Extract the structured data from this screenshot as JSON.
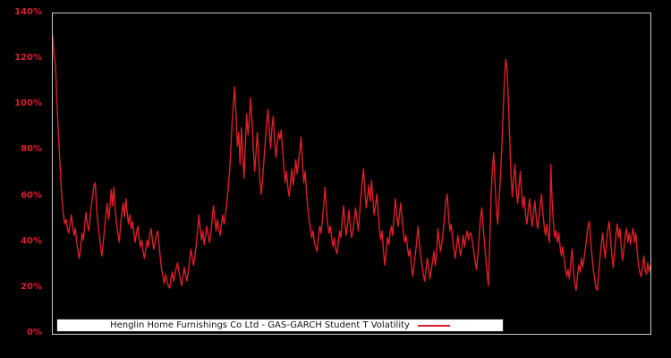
{
  "colors": {
    "background": "#000000",
    "frame": "#cbcbcb",
    "tick_label": "#d8202e",
    "line": "#dc1f28",
    "legend_bg": "#ffffff",
    "legend_text": "#111111"
  },
  "chart_data": {
    "type": "line",
    "title": "",
    "xlabel": "",
    "ylabel": "",
    "unit": "%",
    "grid": false,
    "x_tick_labels": [],
    "y_tick_values": [
      0,
      20,
      40,
      60,
      80,
      100,
      120,
      140
    ],
    "y_tick_labels": [
      "0%",
      "20%",
      "40%",
      "60%",
      "80%",
      "100%",
      "120%",
      "140%"
    ],
    "ylim": [
      0,
      140
    ],
    "legend_position": "bottom-center-inside",
    "legend_label": "Henglin Home Furnishings Co Ltd - GAS-GARCH Student T Volatility",
    "series": [
      {
        "name": "Henglin Home Furnishings Co Ltd - GAS-GARCH Student T Volatility",
        "color": "#dc1f28",
        "values": [
          130,
          121,
          118,
          103,
          90,
          79,
          68,
          58,
          52,
          48,
          50,
          46,
          44,
          48,
          52,
          47,
          43,
          46,
          40,
          36,
          33,
          38,
          44,
          41,
          47,
          53,
          48,
          45,
          50,
          56,
          60,
          65,
          66,
          55,
          48,
          43,
          38,
          34,
          40,
          46,
          52,
          57,
          50,
          55,
          63,
          56,
          64,
          54,
          48,
          44,
          40,
          47,
          53,
          57,
          51,
          59,
          53,
          48,
          52,
          46,
          49,
          44,
          40,
          44,
          47,
          42,
          38,
          41,
          36,
          33,
          37,
          41,
          38,
          43,
          46,
          41,
          37,
          40,
          43,
          45,
          39,
          33,
          28,
          25,
          22,
          26,
          23,
          21,
          20,
          24,
          27,
          23,
          26,
          29,
          31,
          27,
          24,
          21,
          25,
          29,
          26,
          23,
          27,
          32,
          37,
          33,
          30,
          34,
          39,
          45,
          52,
          46,
          41,
          45,
          39,
          43,
          47,
          43,
          40,
          44,
          50,
          56,
          50,
          45,
          50,
          46,
          43,
          48,
          52,
          48,
          52,
          57,
          63,
          70,
          80,
          92,
          101,
          108,
          95,
          82,
          88,
          74,
          90,
          79,
          68,
          83,
          96,
          87,
          94,
          103,
          93,
          81,
          71,
          79,
          88,
          77,
          66,
          61,
          68,
          76,
          84,
          92,
          98,
          89,
          81,
          90,
          95,
          85,
          77,
          83,
          88,
          85,
          89,
          81,
          73,
          66,
          71,
          64,
          60,
          66,
          72,
          65,
          70,
          76,
          70,
          75,
          80,
          86,
          75,
          66,
          71,
          62,
          55,
          50,
          46,
          42,
          45,
          40,
          38,
          36,
          42,
          47,
          44,
          50,
          56,
          64,
          55,
          48,
          44,
          47,
          42,
          38,
          42,
          37,
          35,
          40,
          45,
          42,
          50,
          56,
          48,
          43,
          48,
          54,
          47,
          42,
          45,
          50,
          55,
          50,
          45,
          52,
          60,
          67,
          72,
          62,
          55,
          60,
          65,
          58,
          67,
          59,
          52,
          56,
          61,
          53,
          46,
          41,
          45,
          36,
          30,
          36,
          42,
          39,
          44,
          47,
          43,
          52,
          59,
          52,
          47,
          52,
          57,
          50,
          44,
          40,
          43,
          38,
          34,
          37,
          30,
          25,
          30,
          35,
          40,
          47,
          40,
          34,
          30,
          26,
          23,
          28,
          33,
          29,
          24,
          28,
          32,
          36,
          30,
          35,
          46,
          40,
          36,
          40,
          45,
          52,
          58,
          61,
          52,
          45,
          48,
          42,
          37,
          33,
          38,
          43,
          38,
          34,
          38,
          43,
          38,
          42,
          45,
          41,
          44,
          44,
          40,
          36,
          32,
          28,
          34,
          42,
          50,
          55,
          47,
          40,
          33,
          27,
          21,
          40,
          60,
          72,
          79,
          66,
          55,
          48,
          58,
          68,
          80,
          95,
          110,
          120,
          116,
          103,
          86,
          70,
          60,
          68,
          74,
          63,
          57,
          64,
          71,
          62,
          55,
          60,
          52,
          48,
          54,
          59,
          52,
          47,
          53,
          58,
          51,
          46,
          50,
          56,
          61,
          53,
          47,
          43,
          48,
          43,
          40,
          74,
          58,
          48,
          42,
          45,
          40,
          44,
          38,
          34,
          38,
          33,
          29,
          25,
          28,
          24,
          31,
          37,
          28,
          22,
          19,
          25,
          30,
          27,
          33,
          29,
          33,
          37,
          42,
          47,
          49,
          41,
          34,
          28,
          24,
          20,
          19,
          26,
          33,
          39,
          44,
          38,
          33,
          40,
          46,
          49,
          41,
          34,
          29,
          36,
          43,
          48,
          42,
          46,
          38,
          32,
          37,
          43,
          46,
          40,
          44,
          39,
          43,
          46,
          40,
          44,
          36,
          30,
          27,
          25,
          29,
          34,
          28,
          26,
          31,
          27,
          30
        ]
      }
    ]
  }
}
